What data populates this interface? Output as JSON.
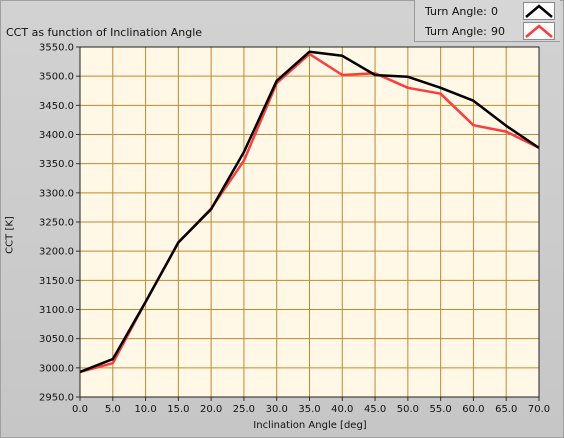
{
  "window": {
    "title": "CCT as function of Inclination Angle"
  },
  "legend": {
    "items": [
      {
        "label": "Turn Angle:",
        "value": "0",
        "color": "#000000"
      },
      {
        "label": "Turn Angle:",
        "value": "90",
        "color": "#ff3b3b"
      }
    ]
  },
  "colors": {
    "plot_bg": "#fff8e6",
    "grid": "#c08a2a",
    "frame": "#222222"
  },
  "chart_data": {
    "type": "line",
    "title": "CCT as function of Inclination Angle",
    "xlabel": "Inclination Angle [deg]",
    "ylabel": "CCT [K]",
    "xlim": [
      0,
      70
    ],
    "ylim": [
      2950,
      3550
    ],
    "grid": true,
    "legend_position": "top-right",
    "x_ticks": [
      "0.0",
      "5.0",
      "10.0",
      "15.0",
      "20.0",
      "25.0",
      "30.0",
      "35.0",
      "40.0",
      "45.0",
      "50.0",
      "55.0",
      "60.0",
      "65.0",
      "70.0"
    ],
    "y_ticks": [
      "2950.0",
      "3000.0",
      "3050.0",
      "3100.0",
      "3150.0",
      "3200.0",
      "3250.0",
      "3300.0",
      "3350.0",
      "3400.0",
      "3450.0",
      "3500.0",
      "3550.0"
    ],
    "x": [
      0,
      5,
      10,
      15,
      20,
      25,
      30,
      35,
      40,
      45,
      50,
      55,
      60,
      65,
      70
    ],
    "series": [
      {
        "name": "Turn Angle: 0",
        "color": "#000000",
        "values": [
          2993,
          3015,
          3113,
          3215,
          3272,
          3370,
          3492,
          3542,
          3535,
          3502,
          3499,
          3480,
          3458,
          3415,
          3377
        ]
      },
      {
        "name": "Turn Angle: 90",
        "color": "#ff3b3b",
        "values": [
          2993,
          3008,
          3113,
          3215,
          3273,
          3355,
          3488,
          3538,
          3502,
          3505,
          3480,
          3470,
          3416,
          3405,
          3377
        ]
      }
    ]
  }
}
